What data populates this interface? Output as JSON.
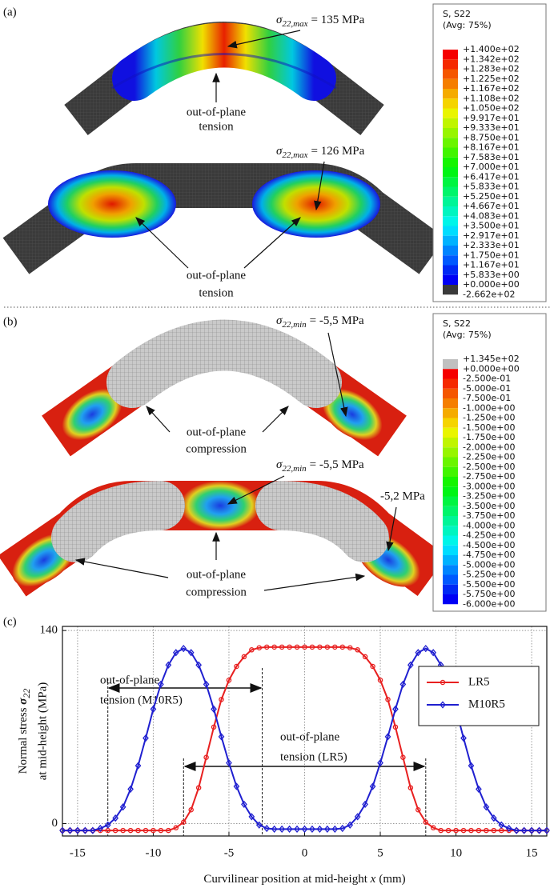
{
  "panel_a": {
    "label": "(a)",
    "legend": {
      "title": "S, S22",
      "subtitle": "(Avg: 75%)",
      "labels": [
        "+1.400e+02",
        "+1.342e+02",
        "+1.283e+02",
        "+1.225e+02",
        "+1.167e+02",
        "+1.108e+02",
        "+1.050e+02",
        "+9.917e+01",
        "+9.333e+01",
        "+8.750e+01",
        "+8.167e+01",
        "+7.583e+01",
        "+7.000e+01",
        "+6.417e+01",
        "+5.833e+01",
        "+5.250e+01",
        "+4.667e+01",
        "+4.083e+01",
        "+3.500e+01",
        "+2.917e+01",
        "+2.333e+01",
        "+1.750e+01",
        "+1.167e+01",
        "+5.833e+00",
        "+0.000e+00",
        "-2.662e+02"
      ]
    },
    "annotations": [
      {
        "symbol": "σ",
        "subscript": "22,max",
        "text": "= 135 MPa"
      },
      {
        "lines": [
          "out-of-plane",
          "tension"
        ]
      },
      {
        "symbol": "σ",
        "subscript": "22,max",
        "text": "= 126 MPa"
      },
      {
        "lines": [
          "out-of-plane",
          "tension"
        ]
      }
    ]
  },
  "panel_b": {
    "label": "(b)",
    "legend": {
      "title": "S, S22",
      "subtitle": "(Avg: 75%)",
      "labels": [
        "+1.345e+02",
        "+0.000e+00",
        "-2.500e-01",
        "-5.000e-01",
        "-7.500e-01",
        "-1.000e+00",
        "-1.250e+00",
        "-1.500e+00",
        "-1.750e+00",
        "-2.000e+00",
        "-2.250e+00",
        "-2.500e+00",
        "-2.750e+00",
        "-3.000e+00",
        "-3.250e+00",
        "-3.500e+00",
        "-3.750e+00",
        "-4.000e+00",
        "-4.250e+00",
        "-4.500e+00",
        "-4.750e+00",
        "-5.000e+00",
        "-5.250e+00",
        "-5.500e+00",
        "-5.750e+00",
        "-6.000e+00"
      ]
    },
    "annotations": [
      {
        "symbol": "σ",
        "subscript": "22,min",
        "text": "= -5,5 MPa"
      },
      {
        "lines": [
          "out-of-plane",
          "compression"
        ]
      },
      {
        "symbol": "σ",
        "subscript": "22,min",
        "text": "= -5,5 MPa"
      },
      {
        "text": "-5,2 MPa"
      },
      {
        "lines": [
          "out-of-plane",
          "compression"
        ]
      }
    ]
  },
  "chart_data": {
    "type": "line",
    "label": "(c)",
    "ylabel": {
      "text": "Normal stress ",
      "symbol": "σ",
      "subscript": "22",
      "line2": "at mid-height (MPa)"
    },
    "xlabel": {
      "text": "Curvilinear position at mid-height ",
      "symbol": "x",
      "unit": "(mm)"
    },
    "x": [
      -16,
      -15.5,
      -15,
      -14.5,
      -14,
      -13.5,
      -13,
      -12.5,
      -12,
      -11.5,
      -11,
      -10.5,
      -10,
      -9.5,
      -9,
      -8.5,
      -8,
      -7.5,
      -7,
      -6.5,
      -6,
      -5.5,
      -5,
      -4.5,
      -4,
      -3.5,
      -3,
      -2.5,
      -2,
      -1.5,
      -1,
      -0.5,
      0,
      0.5,
      1,
      1.5,
      2,
      2.5,
      3,
      3.5,
      4,
      4.5,
      5,
      5.5,
      6,
      6.5,
      7,
      7.5,
      8,
      8.5,
      9,
      9.5,
      10,
      10.5,
      11,
      11.5,
      12,
      12.5,
      13,
      13.5,
      14,
      14.5,
      15,
      15.5,
      16
    ],
    "series": [
      {
        "name": "LR5",
        "color": "#e82020",
        "marker": "circle",
        "values": [
          -5,
          -5,
          -5,
          -5,
          -5,
          -5,
          -5,
          -5,
          -5,
          -5,
          -5,
          -5,
          -5,
          -5,
          -5,
          -3,
          1,
          10,
          26,
          48,
          70,
          90,
          104,
          114,
          121,
          126,
          127.5,
          128,
          128,
          128,
          128,
          128,
          128,
          128,
          128,
          128,
          128,
          128,
          127.5,
          126,
          121,
          114,
          104,
          90,
          70,
          48,
          26,
          10,
          1,
          -3,
          -5,
          -5,
          -5,
          -5,
          -5,
          -5,
          -5,
          -5,
          -5,
          -5,
          -5,
          -5,
          -5,
          -5,
          -5
        ]
      },
      {
        "name": "M10R5",
        "color": "#1f1fd0",
        "marker": "diamond",
        "values": [
          -5,
          -5,
          -5,
          -5,
          -5,
          -3.5,
          -1,
          4,
          12,
          25,
          42,
          62,
          83,
          101,
          115,
          124,
          127,
          124,
          115,
          101,
          83,
          63,
          44,
          27,
          14,
          5,
          -1,
          -3.5,
          -4,
          -4,
          -4,
          -4,
          -4,
          -4,
          -4,
          -4,
          -4,
          -3.5,
          -1,
          5,
          14,
          27,
          44,
          63,
          83,
          101,
          115,
          124,
          127,
          124,
          115,
          101,
          83,
          62,
          42,
          25,
          12,
          4,
          -1,
          -3.5,
          -5,
          -5,
          -5,
          -5,
          -5
        ]
      }
    ],
    "annotations": [
      {
        "lines": [
          "out-of-plane",
          "tension (M10R5)"
        ],
        "color": "#2a2ae0"
      },
      {
        "lines": [
          "out-of-plane",
          "tension (LR5)"
        ],
        "color": "#e83030"
      }
    ],
    "xlim": [
      -16,
      16
    ],
    "ylim": [
      -9,
      143
    ],
    "xticks": [
      -15,
      -10,
      -5,
      0,
      5,
      10,
      15
    ],
    "yticks": [
      0,
      140
    ],
    "grid": true,
    "legend": "upper right"
  }
}
